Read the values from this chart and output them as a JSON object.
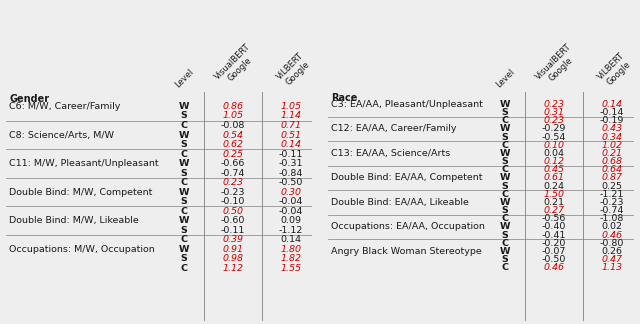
{
  "left_section": {
    "header": "Gender",
    "rows": [
      {
        "label": "C6: M/W, Career/Family",
        "data": [
          [
            "W",
            "0.86",
            "1.05",
            true,
            true
          ],
          [
            "S",
            "1.05",
            "1.14",
            true,
            true
          ],
          [
            "C",
            "-0.08",
            "0.71",
            false,
            true
          ]
        ]
      },
      {
        "label": "C8: Science/Arts, M/W",
        "data": [
          [
            "W",
            "0.54",
            "0.51",
            true,
            true
          ],
          [
            "S",
            "0.62",
            "0.14",
            true,
            true
          ],
          [
            "C",
            "0.25",
            "-0.11",
            true,
            false
          ]
        ]
      },
      {
        "label": "C11: M/W, Pleasant/Unpleasant",
        "data": [
          [
            "W",
            "-0.66",
            "-0.31",
            false,
            false
          ],
          [
            "S",
            "-0.74",
            "-0.84",
            false,
            false
          ],
          [
            "C",
            "0.23",
            "-0.50",
            true,
            false
          ]
        ]
      },
      {
        "label": "Double Bind: M/W, Competent",
        "data": [
          [
            "W",
            "-0.23",
            "0.30",
            false,
            true
          ],
          [
            "S",
            "-0.10",
            "-0.04",
            false,
            false
          ],
          [
            "C",
            "0.50",
            "-0.04",
            true,
            false
          ]
        ]
      },
      {
        "label": "Double Bind: M/W, Likeable",
        "data": [
          [
            "W",
            "-0.60",
            "0.09",
            false,
            false
          ],
          [
            "S",
            "-0.11",
            "-1.12",
            false,
            false
          ],
          [
            "C",
            "0.39",
            "0.14",
            true,
            false
          ]
        ]
      },
      {
        "label": "Occupations: M/W, Occupation",
        "data": [
          [
            "W",
            "0.91",
            "1.80",
            true,
            true
          ],
          [
            "S",
            "0.98",
            "1.82",
            true,
            true
          ],
          [
            "C",
            "1.12",
            "1.55",
            true,
            true
          ]
        ]
      }
    ]
  },
  "right_section": {
    "header": "Race",
    "rows": [
      {
        "label": "C3: EA/AA, Pleasant/Unpleasant",
        "data": [
          [
            "W",
            "0.23",
            "0.14",
            true,
            true
          ],
          [
            "S",
            "0.31",
            "-0.14",
            true,
            false
          ],
          [
            "C",
            "0.23",
            "-0.19",
            true,
            false
          ]
        ]
      },
      {
        "label": "C12: EA/AA, Career/Family",
        "data": [
          [
            "W",
            "-0.29",
            "0.43",
            false,
            true
          ],
          [
            "S",
            "-0.54",
            "0.34",
            false,
            true
          ],
          [
            "C",
            "0.10",
            "1.02",
            true,
            true
          ]
        ]
      },
      {
        "label": "C13: EA/AA, Science/Arts",
        "data": [
          [
            "W",
            "0.04",
            "0.21",
            false,
            true
          ],
          [
            "S",
            "0.12",
            "0.68",
            true,
            true
          ],
          [
            "C",
            "0.45",
            "0.64",
            true,
            true
          ]
        ]
      },
      {
        "label": "Double Bind: EA/AA, Competent",
        "data": [
          [
            "W",
            "0.61",
            "0.87",
            true,
            true
          ],
          [
            "S",
            "0.24",
            "0.25",
            false,
            false
          ],
          [
            "C",
            "1.50",
            "-1.21",
            true,
            false
          ]
        ]
      },
      {
        "label": "Double Bind: EA/AA, Likeable",
        "data": [
          [
            "W",
            "0.21",
            "-0.23",
            false,
            false
          ],
          [
            "S",
            "0.27",
            "-0.74",
            true,
            false
          ],
          [
            "C",
            "-0.56",
            "-1.08",
            false,
            false
          ]
        ]
      },
      {
        "label": "Occupations: EA/AA, Occupation",
        "data": [
          [
            "W",
            "-0.40",
            "0.02",
            false,
            false
          ],
          [
            "S",
            "-0.41",
            "0.46",
            false,
            true
          ],
          [
            "C",
            "-0.20",
            "-0.80",
            false,
            false
          ]
        ]
      },
      {
        "label": "Angry Black Woman Stereotype",
        "data": [
          [
            "W",
            "-0.07",
            "0.26",
            false,
            false
          ],
          [
            "S",
            "-0.50",
            "0.47",
            false,
            true
          ],
          [
            "C",
            "0.46",
            "1.13",
            true,
            true
          ]
        ]
      }
    ]
  },
  "red_color": "#cc0000",
  "black_color": "#1a1a1a",
  "bg_color": "#eeeeee",
  "col_level": 0.58,
  "col_vb": 0.74,
  "col_vil": 0.93,
  "col_vline1": 0.645,
  "col_vline2": 0.835,
  "header_space": 0.28,
  "font_size_label": 6.8,
  "font_size_data": 6.8,
  "font_size_header": 7.0,
  "font_size_col_header": 6.0
}
